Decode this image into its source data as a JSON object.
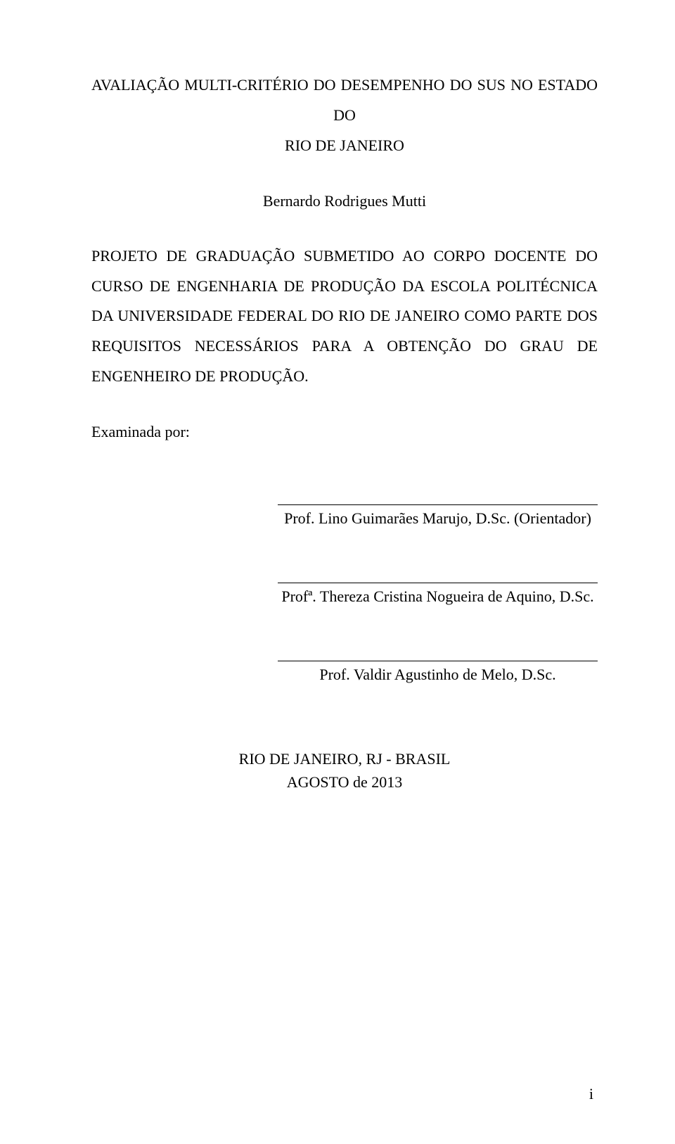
{
  "title": {
    "line1": "AVALIAÇÃO MULTI-CRITÉRIO DO DESEMPENHO DO SUS NO ESTADO DO",
    "line2": "RIO DE JANEIRO"
  },
  "author": "Bernardo Rodrigues Mutti",
  "body": "PROJETO DE GRADUAÇÃO SUBMETIDO AO CORPO DOCENTE DO CURSO DE ENGENHARIA DE PRODUÇÃO DA ESCOLA POLITÉCNICA DA UNIVERSIDADE FEDERAL DO RIO DE JANEIRO COMO PARTE DOS REQUISITOS NECESSÁRIOS PARA A OBTENÇÃO DO GRAU DE ENGENHEIRO DE PRODUÇÃO.",
  "examined_label": "Examinada por:",
  "signatures": [
    "Prof. Lino Guimarães Marujo, D.Sc. (Orientador)",
    "Profª. Thereza Cristina Nogueira de Aquino, D.Sc.",
    "Prof. Valdir Agustinho de Melo, D.Sc."
  ],
  "footer": {
    "location": "RIO DE JANEIRO, RJ - BRASIL",
    "date": "AGOSTO de 2013"
  },
  "page_number": "i",
  "colors": {
    "background": "#ffffff",
    "text": "#000000"
  },
  "typography": {
    "font_family": "Times New Roman",
    "base_fontsize": 22
  }
}
